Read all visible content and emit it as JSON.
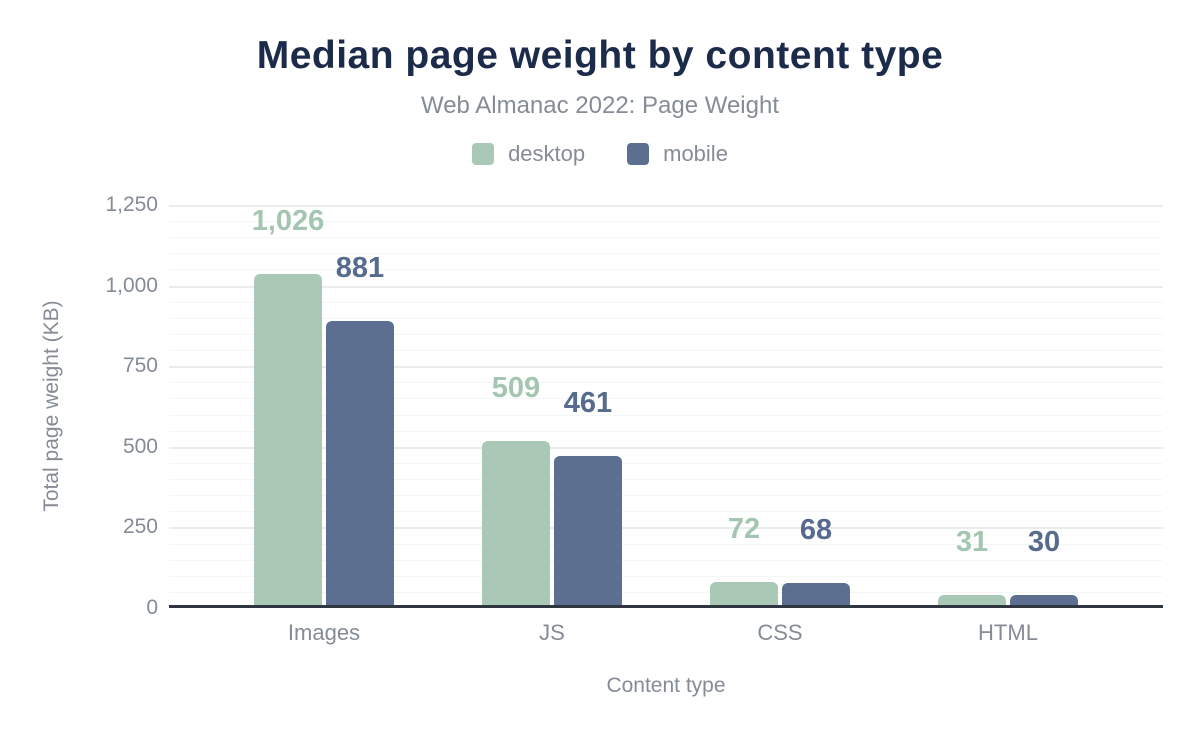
{
  "title": "Median page weight by content type",
  "subtitle": "Web Almanac 2022: Page Weight",
  "chart_data": {
    "type": "bar",
    "title": "Median page weight by content type",
    "subtitle": "Web Almanac 2022: Page Weight",
    "categories": [
      "Images",
      "JS",
      "CSS",
      "HTML"
    ],
    "series": [
      {
        "name": "desktop",
        "color": "#a9c9b6",
        "label_color": "#a4c6b1",
        "values": [
          1026,
          509,
          72,
          31
        ],
        "value_labels": [
          "1,026",
          "509",
          "72",
          "31"
        ]
      },
      {
        "name": "mobile",
        "color": "#5c6f90",
        "label_color": "#566b8d",
        "values": [
          881,
          461,
          68,
          30
        ],
        "value_labels": [
          "881",
          "461",
          "68",
          "30"
        ]
      }
    ],
    "xlabel": "Content type",
    "ylabel": "Total page weight (KB)",
    "ylim": [
      0,
      1250
    ],
    "yticks": [
      0,
      250,
      500,
      750,
      1000,
      1250
    ],
    "ytick_labels": [
      "0",
      "250",
      "500",
      "750",
      "1,000",
      "1,250"
    ],
    "minor_tick_step": 50,
    "grid": true,
    "legend_position": "top"
  },
  "colors": {
    "title": "#1c2b4a",
    "muted_text": "#858c95",
    "axis_line": "#2f3640",
    "grid_major": "#e9ebed",
    "grid_minor": "#f5f6f7",
    "background": "#ffffff"
  }
}
